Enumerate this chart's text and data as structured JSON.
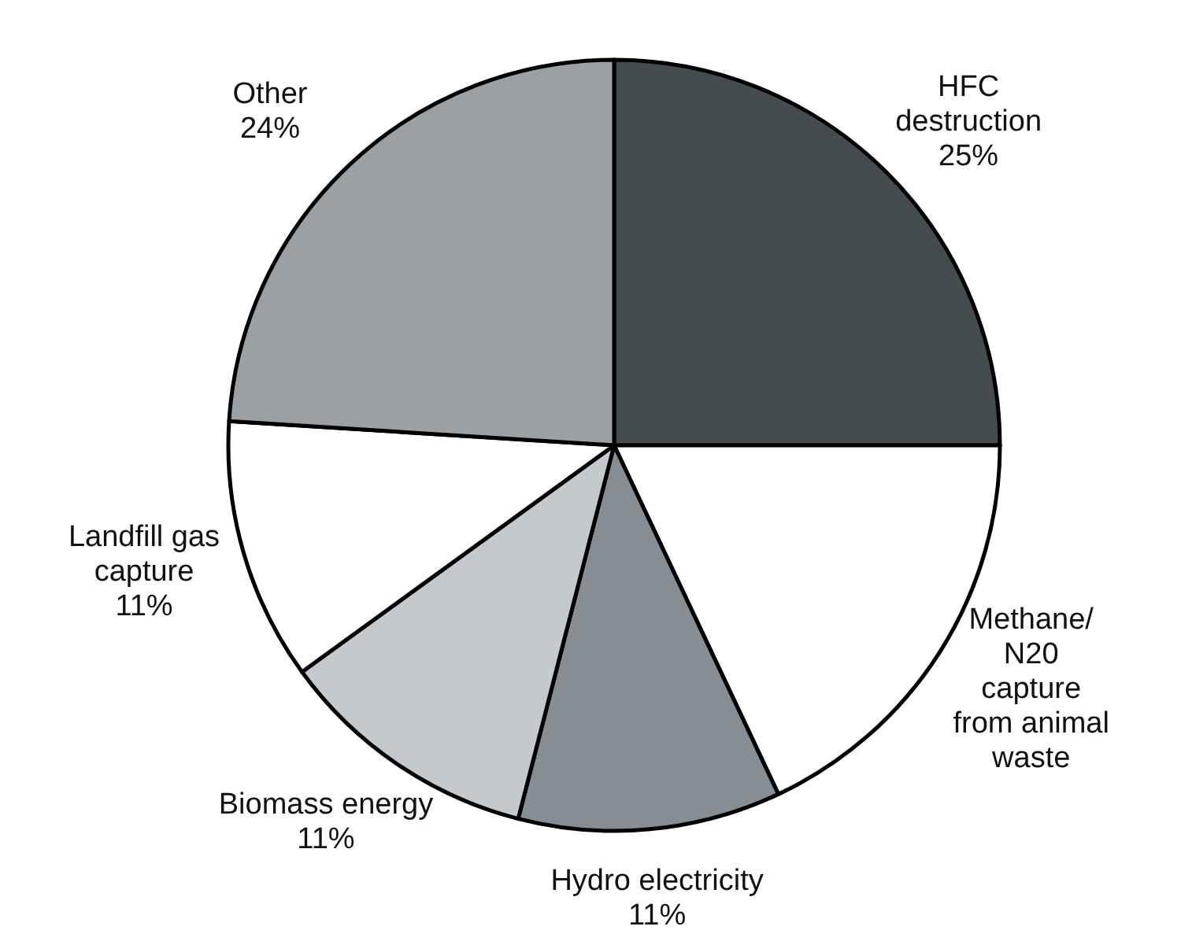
{
  "chart_data": {
    "type": "pie",
    "categories": [
      "HFC\ndestruction",
      "Methane/\nN20\ncapture\nfrom animal\nwaste",
      "Hydro electricity",
      "Biomass energy",
      "Landfill gas\ncapture",
      "Other"
    ],
    "values": [
      25,
      18,
      11,
      11,
      11,
      24
    ],
    "value_labels": [
      "25%",
      null,
      "11%",
      "11%",
      "11%",
      "24%"
    ],
    "colors": [
      "#454c4f",
      "#ffffff",
      "#878e93",
      "#c5c8cc",
      "#ffffff",
      "#9ba0a5"
    ]
  }
}
